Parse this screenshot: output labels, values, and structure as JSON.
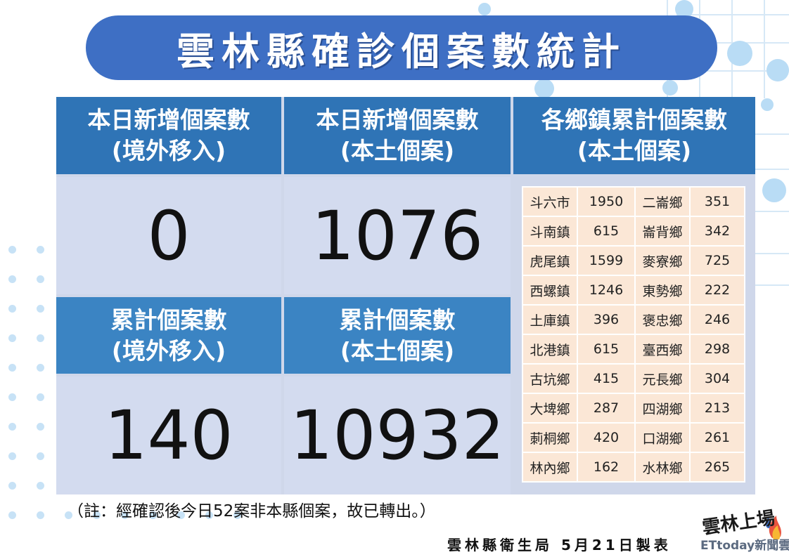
{
  "title": "雲林縣確診個案數統計",
  "headers": {
    "daily_imported": [
      "本日新增個案數",
      "(境外移入)"
    ],
    "daily_local": [
      "本日新增個案數",
      "(本土個案)"
    ],
    "towns_cumulative": [
      "各鄉鎮累計個案數",
      "(本土個案)"
    ],
    "cumulative_imported": [
      "累計個案數",
      "(境外移入)"
    ],
    "cumulative_local": [
      "累計個案數",
      "(本土個案)"
    ]
  },
  "values": {
    "daily_imported": "0",
    "daily_local": "1076",
    "cumulative_imported": "140",
    "cumulative_local": "10932"
  },
  "towns": [
    [
      {
        "name": "斗六市",
        "count": "1950"
      },
      {
        "name": "二崙鄉",
        "count": "351"
      }
    ],
    [
      {
        "name": "斗南鎮",
        "count": "615"
      },
      {
        "name": "崙背鄉",
        "count": "342"
      }
    ],
    [
      {
        "name": "虎尾鎮",
        "count": "1599"
      },
      {
        "name": "麥寮鄉",
        "count": "725"
      }
    ],
    [
      {
        "name": "西螺鎮",
        "count": "1246"
      },
      {
        "name": "東勢鄉",
        "count": "222"
      }
    ],
    [
      {
        "name": "土庫鎮",
        "count": "396"
      },
      {
        "name": "褒忠鄉",
        "count": "246"
      }
    ],
    [
      {
        "name": "北港鎮",
        "count": "615"
      },
      {
        "name": "臺西鄉",
        "count": "298"
      }
    ],
    [
      {
        "name": "古坑鄉",
        "count": "415"
      },
      {
        "name": "元長鄉",
        "count": "304"
      }
    ],
    [
      {
        "name": "大埤鄉",
        "count": "287"
      },
      {
        "name": "四湖鄉",
        "count": "213"
      }
    ],
    [
      {
        "name": "莿桐鄉",
        "count": "420"
      },
      {
        "name": "口湖鄉",
        "count": "261"
      }
    ],
    [
      {
        "name": "林內鄉",
        "count": "162"
      },
      {
        "name": "水林鄉",
        "count": "265"
      }
    ]
  ],
  "note": "（註：經確認後今日52案非本縣個案，故已轉出。）",
  "footer": "雲林縣衛生局 5月21日製表",
  "logo": {
    "script": "雲林上場",
    "brand": "ETtoday新聞雲"
  },
  "colors": {
    "title_bg": "#3e6fc4",
    "header_bg": "#2f74b6",
    "value_bg": "#d3dbef",
    "town_cell_bg": "#fbe7d6"
  }
}
